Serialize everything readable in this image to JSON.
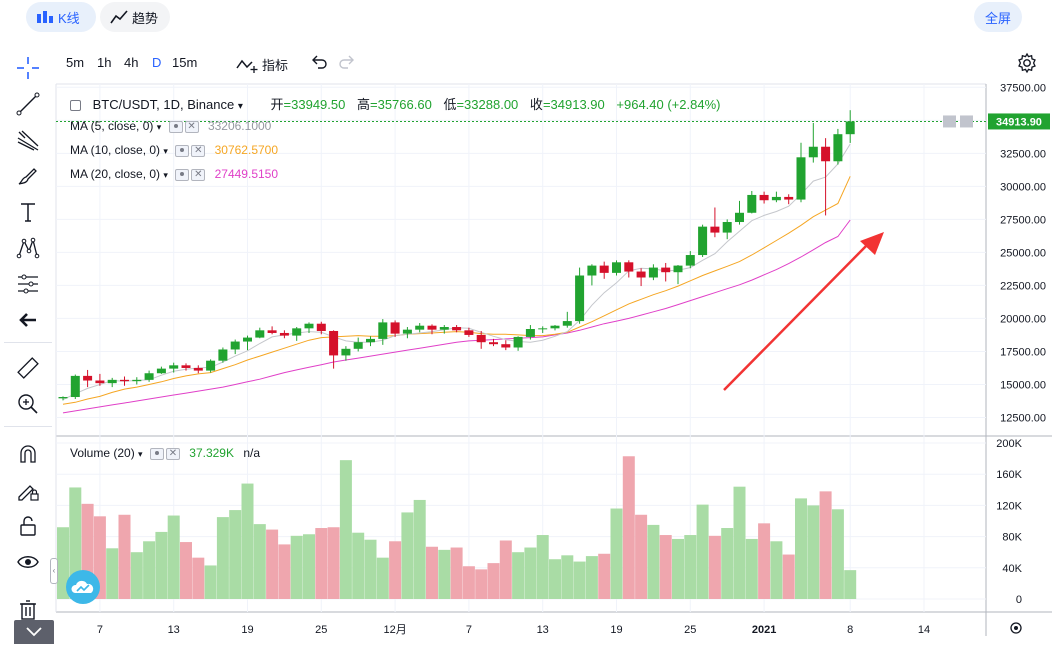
{
  "tabs": [
    {
      "label": "K线",
      "icon": "candlestick-icon",
      "active": true
    },
    {
      "label": "趋势",
      "icon": "trend-line-icon",
      "active": false
    }
  ],
  "fullscreen_label": "全屏",
  "timeframes": [
    "5m",
    "1h",
    "4h",
    "D",
    "15m"
  ],
  "active_timeframe": "D",
  "indicators_label": "指标",
  "legend": {
    "symbol": "BTC/USDT, 1D, Binance",
    "open_label": "开",
    "open": "=33949.50",
    "high_label": "高",
    "high": "=35766.60",
    "low_label": "低",
    "low": "=33288.00",
    "close_label": "收",
    "close": "=34913.90",
    "change": "+964.40 (+2.84%)"
  },
  "ma": [
    {
      "label": "MA (5, close, 0)",
      "value": "33206.1000",
      "color": "#9598a1"
    },
    {
      "label": "MA (10, close, 0)",
      "value": "30762.5700",
      "color": "#f5a623"
    },
    {
      "label": "MA (20, close, 0)",
      "value": "27449.5150",
      "color": "#e040c8"
    }
  ],
  "volume_legend": {
    "label": "Volume (20)",
    "value": "37.329K",
    "na": "n/a"
  },
  "price_tag": "34913.90",
  "colors": {
    "up": "#26a69a",
    "up_candle": "#21a330",
    "down_candle": "#d5102a",
    "vol_up": "#a9dca5",
    "vol_down": "#efa6ae",
    "arrow": "#f23333",
    "last_line": "#21a330"
  },
  "chart_data": {
    "type": "candlestick",
    "ylim": [
      11250,
      37750
    ],
    "y_ticks": [
      "37500.00",
      "35000.00",
      "32500.00",
      "30000.00",
      "27500.00",
      "25000.00",
      "22500.00",
      "20000.00",
      "17500.00",
      "15000.00",
      "12500.00"
    ],
    "volume_ylim": [
      0,
      200000
    ],
    "volume_ticks": [
      "200K",
      "160K",
      "120K",
      "80K",
      "40K",
      "0"
    ],
    "x_tick_labels": [
      "7",
      "13",
      "19",
      "25",
      "12月",
      "7",
      "13",
      "19",
      "25",
      "2021",
      "8",
      "14"
    ],
    "x_tick_index": [
      3,
      9,
      15,
      21,
      27,
      33,
      39,
      45,
      51,
      57,
      64,
      70
    ],
    "candles": [
      [
        13950,
        14100,
        13800,
        14050
      ],
      [
        14050,
        15750,
        13900,
        15650
      ],
      [
        15650,
        16100,
        14800,
        15300
      ],
      [
        15300,
        15800,
        14900,
        15100
      ],
      [
        15100,
        15500,
        14800,
        15350
      ],
      [
        15350,
        15600,
        14900,
        15250
      ],
      [
        15250,
        15550,
        15000,
        15350
      ],
      [
        15350,
        16050,
        15200,
        15850
      ],
      [
        15850,
        16350,
        15800,
        16200
      ],
      [
        16200,
        16650,
        15900,
        16450
      ],
      [
        16450,
        16600,
        16050,
        16250
      ],
      [
        16250,
        16450,
        15850,
        16050
      ],
      [
        16050,
        16900,
        15900,
        16800
      ],
      [
        16800,
        17800,
        16650,
        17650
      ],
      [
        17650,
        18400,
        17300,
        18250
      ],
      [
        18250,
        18700,
        17600,
        18550
      ],
      [
        18550,
        19300,
        18500,
        19100
      ],
      [
        19100,
        19400,
        18800,
        18900
      ],
      [
        18900,
        19100,
        18500,
        18700
      ],
      [
        18700,
        19350,
        18300,
        19250
      ],
      [
        19250,
        19700,
        18900,
        19600
      ],
      [
        19600,
        19750,
        18800,
        19050
      ],
      [
        19050,
        19100,
        16200,
        17200
      ],
      [
        17200,
        17900,
        16800,
        17700
      ],
      [
        17700,
        18550,
        17500,
        18200
      ],
      [
        18200,
        18650,
        17900,
        18450
      ],
      [
        18450,
        19950,
        18000,
        19700
      ],
      [
        19700,
        19850,
        18600,
        18850
      ],
      [
        18850,
        19350,
        18500,
        19150
      ],
      [
        19150,
        19650,
        18950,
        19450
      ],
      [
        19450,
        19550,
        18800,
        19150
      ],
      [
        19150,
        19500,
        18850,
        19350
      ],
      [
        19350,
        19500,
        18950,
        19100
      ],
      [
        19100,
        19300,
        18600,
        18750
      ],
      [
        18750,
        19050,
        17700,
        18200
      ],
      [
        18200,
        18450,
        17900,
        18050
      ],
      [
        18050,
        18350,
        17600,
        17800
      ],
      [
        17800,
        18650,
        17550,
        18600
      ],
      [
        18600,
        19500,
        18400,
        19200
      ],
      [
        19200,
        19400,
        18900,
        19250
      ],
      [
        19250,
        19500,
        19100,
        19450
      ],
      [
        19450,
        20500,
        19300,
        19800
      ],
      [
        19800,
        23850,
        19600,
        23250
      ],
      [
        23250,
        24100,
        22500,
        24000
      ],
      [
        24000,
        24300,
        23000,
        23450
      ],
      [
        23450,
        24400,
        23250,
        24250
      ],
      [
        24250,
        24400,
        23100,
        23550
      ],
      [
        23550,
        23800,
        22450,
        23100
      ],
      [
        23100,
        24100,
        22900,
        23850
      ],
      [
        23850,
        24200,
        22800,
        23500
      ],
      [
        23500,
        24050,
        22600,
        24000
      ],
      [
        24000,
        25100,
        23800,
        24800
      ],
      [
        24800,
        27100,
        24650,
        26950
      ],
      [
        26950,
        28400,
        26150,
        26500
      ],
      [
        26500,
        27500,
        26000,
        27300
      ],
      [
        27300,
        28900,
        27100,
        28000
      ],
      [
        28000,
        29650,
        27950,
        29350
      ],
      [
        29350,
        29600,
        28700,
        28950
      ],
      [
        28950,
        29600,
        28800,
        29200
      ],
      [
        29200,
        29400,
        28650,
        29000
      ],
      [
        29000,
        33300,
        28800,
        32200
      ],
      [
        32200,
        34800,
        31800,
        33000
      ],
      [
        33000,
        33650,
        27800,
        31900
      ],
      [
        31900,
        34350,
        31650,
        33950
      ],
      [
        33950,
        35766.6,
        33288,
        34913.9
      ]
    ],
    "ma5": [
      13850,
      14300,
      14700,
      15000,
      15300,
      15250,
      15300,
      15350,
      15700,
      16000,
      16150,
      16250,
      16300,
      16700,
      17150,
      17550,
      18100,
      18600,
      18750,
      18900,
      19000,
      18950,
      18600,
      18300,
      18200,
      18200,
      18350,
      18700,
      18800,
      18900,
      19000,
      19150,
      19300,
      19250,
      18950,
      18650,
      18400,
      18250,
      18200,
      18350,
      18650,
      19000,
      19850,
      21000,
      21950,
      22700,
      23600,
      23800,
      23750,
      23600,
      23650,
      23850,
      24400,
      24900,
      25800,
      26600,
      27400,
      27800,
      28100,
      28500,
      29400,
      30400,
      30700,
      31700,
      33206.1
    ],
    "ma10": [
      13500,
      13650,
      13900,
      14100,
      14400,
      14650,
      14800,
      15000,
      15200,
      15450,
      15650,
      15800,
      15900,
      16200,
      16500,
      16850,
      17150,
      17450,
      17750,
      18050,
      18350,
      18550,
      18600,
      18650,
      18700,
      18650,
      18650,
      18700,
      18800,
      18850,
      18900,
      18950,
      19000,
      18950,
      18850,
      18800,
      18800,
      18750,
      18700,
      18700,
      18800,
      18950,
      19350,
      19750,
      20200,
      20650,
      21100,
      21450,
      21800,
      22100,
      22450,
      22850,
      23250,
      23600,
      23950,
      24300,
      24800,
      25350,
      25900,
      26450,
      27050,
      27700,
      28200,
      28700,
      30762.57
    ],
    "ma20": [
      12850,
      13000,
      13150,
      13300,
      13450,
      13600,
      13750,
      13900,
      14050,
      14200,
      14350,
      14500,
      14650,
      14800,
      15000,
      15200,
      15400,
      15650,
      15900,
      16100,
      16300,
      16500,
      16700,
      16850,
      17000,
      17150,
      17300,
      17450,
      17600,
      17750,
      17900,
      18050,
      18200,
      18300,
      18350,
      18400,
      18450,
      18500,
      18550,
      18600,
      18750,
      18900,
      19100,
      19350,
      19600,
      19800,
      20000,
      20250,
      20500,
      20750,
      21050,
      21350,
      21650,
      21950,
      22250,
      22550,
      22900,
      23300,
      23700,
      24150,
      24650,
      25200,
      25750,
      26200,
      27449.515
    ],
    "volume": [
      92,
      143,
      122,
      106,
      65,
      108,
      60,
      74,
      86,
      107,
      73,
      53,
      43,
      105,
      114,
      148,
      96,
      89,
      70,
      81,
      83,
      91,
      92,
      178,
      85,
      76,
      53,
      74,
      111,
      127,
      67,
      63,
      66,
      42,
      38,
      46,
      75,
      60,
      66,
      82,
      51,
      56,
      48,
      55,
      58,
      116,
      183,
      108,
      95,
      82,
      77,
      82,
      121,
      81,
      91,
      144,
      77,
      97,
      74,
      57,
      129,
      120,
      138,
      115,
      37
    ],
    "volume_scale": 1000
  }
}
